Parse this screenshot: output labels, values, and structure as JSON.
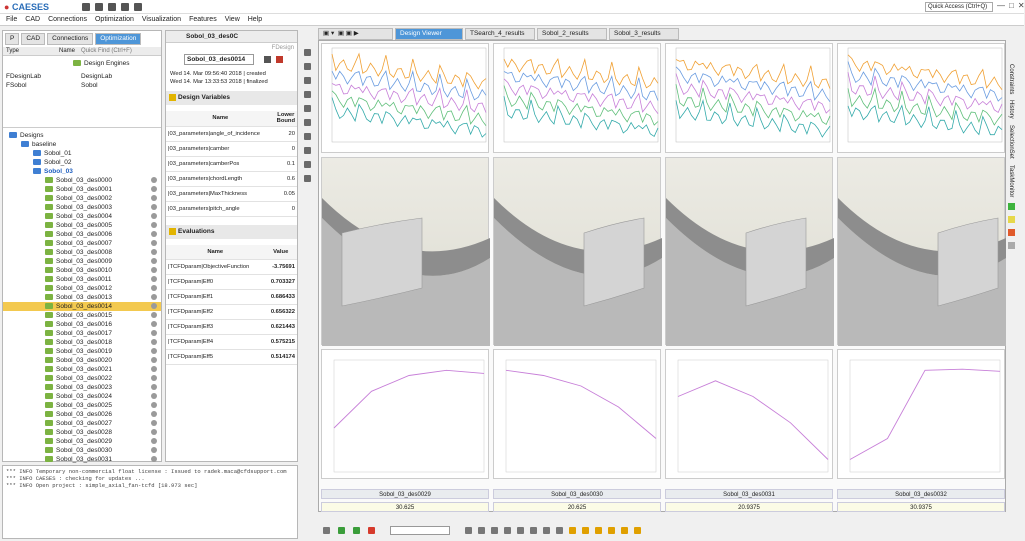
{
  "app": {
    "name_part1": "CAESES",
    "quick_access": "Quick Access (Ctrl+Q)",
    "win": [
      "—",
      "□",
      "✕"
    ]
  },
  "menu": [
    "File",
    "CAD",
    "Connections",
    "Optimization",
    "Visualization",
    "Features",
    "View",
    "Help"
  ],
  "left": {
    "tabs": [
      "CAD",
      "Connections",
      "Optimization"
    ],
    "col_type": "Type",
    "col_name": "Name",
    "quick_find": "Quick Find (Ctrl+F)",
    "engines_label": "Design Engines",
    "engines": [
      {
        "type": "FDesignLab",
        "name": "DesignLab"
      },
      {
        "type": "FSobol",
        "name": "Sobol"
      }
    ],
    "designs_root": "Designs",
    "baseline": "baseline",
    "sobol_folders": [
      "Sobol_01",
      "Sobol_02",
      "Sobol_03"
    ],
    "designs": [
      "Sobol_03_des0000",
      "Sobol_03_des0001",
      "Sobol_03_des0002",
      "Sobol_03_des0003",
      "Sobol_03_des0004",
      "Sobol_03_des0005",
      "Sobol_03_des0006",
      "Sobol_03_des0007",
      "Sobol_03_des0008",
      "Sobol_03_des0009",
      "Sobol_03_des0010",
      "Sobol_03_des0011",
      "Sobol_03_des0012",
      "Sobol_03_des0013",
      "Sobol_03_des0014",
      "Sobol_03_des0015",
      "Sobol_03_des0016",
      "Sobol_03_des0017",
      "Sobol_03_des0018",
      "Sobol_03_des0019",
      "Sobol_03_des0020",
      "Sobol_03_des0021",
      "Sobol_03_des0022",
      "Sobol_03_des0023",
      "Sobol_03_des0024",
      "Sobol_03_des0025",
      "Sobol_03_des0026",
      "Sobol_03_des0027",
      "Sobol_03_des0028",
      "Sobol_03_des0029",
      "Sobol_03_des0030",
      "Sobol_03_des0031"
    ],
    "selected_index": 14
  },
  "console": [
    "*** INFO Temporary non-commercial float license : Issued to radek.maca@cfdsupport.com",
    "*** INFO CAESES : checking for updates ...",
    "*** INFO Open project : simple_axial_fan-tcfd [18.973 sec]"
  ],
  "mid": {
    "title": "Sobol_03_des0C",
    "type": "FDesign",
    "name": "Sobol_03_des0014",
    "created": "Wed 14. Mar 09:56:40 2018 | created",
    "finalized": "Wed 14. Mar 13:33:53 2018 | finalized",
    "dv_header": "Design Variables",
    "dv_col_name": "Name",
    "dv_col_lb": "Lower Bound",
    "dv": [
      {
        "n": "|03_parameters|angle_of_incidence",
        "v": "20"
      },
      {
        "n": "|03_parameters|camber",
        "v": "0"
      },
      {
        "n": "|03_parameters|camberPos",
        "v": "0.1"
      },
      {
        "n": "|03_parameters|chordLength",
        "v": "0.6"
      },
      {
        "n": "|03_parameters|MaxThickness",
        "v": "0.05"
      },
      {
        "n": "|03_parameters|pitch_angle",
        "v": "0"
      }
    ],
    "ev_header": "Evaluations",
    "ev_col_name": "Name",
    "ev_col_val": "Value",
    "ev": [
      {
        "n": "|TCFDparam|ObjectiveFunction",
        "v": "-3.75691"
      },
      {
        "n": "|TCFDparam|Eff0",
        "v": "0.703327"
      },
      {
        "n": "|TCFDparam|Eff1",
        "v": "0.686433"
      },
      {
        "n": "|TCFDparam|Eff2",
        "v": "0.656322"
      },
      {
        "n": "|TCFDparam|Eff3",
        "v": "0.621443"
      },
      {
        "n": "|TCFDparam|Eff4",
        "v": "0.575215"
      },
      {
        "n": "|TCFDparam|Eff5",
        "v": "0.514174"
      }
    ]
  },
  "viewer": {
    "tabs": [
      "Design Viewer",
      "TSearch_4_results",
      "Sobol_2_results",
      "Sobol_3_results"
    ],
    "columns": [
      {
        "name": "Sobol_03_des0029",
        "value": "30.625"
      },
      {
        "name": "Sobol_03_des0030",
        "value": "20.625"
      },
      {
        "name": "Sobol_03_des0031",
        "value": "20.9375"
      },
      {
        "name": "Sobol_03_des0032",
        "value": "30.9375"
      }
    ]
  },
  "right_tabs": [
    "Constraints",
    "History",
    "SelectionSet",
    "TaskMonitor"
  ],
  "colors": {
    "accent": "#4e96d8",
    "selected": "#f3c94f",
    "folder": "#7cb342",
    "line": "#c77fd8"
  }
}
